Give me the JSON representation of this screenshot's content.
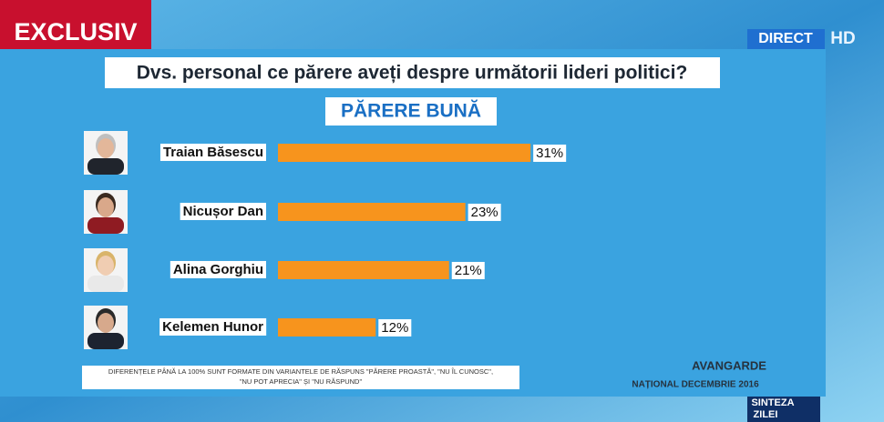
{
  "broadcast": {
    "badge": "EXCLUSIV",
    "live": "DIRECT",
    "hd": "HD",
    "show": [
      "SINTEZA",
      "ZILEI"
    ]
  },
  "chart_data": {
    "type": "bar",
    "orientation": "horizontal",
    "title": "Dvs. personal ce părere aveți despre următorii lideri politici?",
    "subtitle": "PĂRERE BUNĂ",
    "categories": [
      "Traian Băsescu",
      "Nicușor Dan",
      "Alina Gorghiu",
      "Kelemen Hunor"
    ],
    "values": [
      31,
      23,
      21,
      12
    ],
    "value_labels": [
      "31%",
      "23%",
      "21%",
      "12%"
    ],
    "color": "#f7941d",
    "note": [
      "DIFERENȚELE PÂNĂ LA 100% SUNT FORMATE DIN VARIANTELE DE RĂSPUNS \"PĂRERE PROASTĂ\", \"NU ÎL CUNOSC\",",
      "\"NU POT APRECIA\" ȘI \"NU RĂSPUND\""
    ],
    "source": "AVANGARDE",
    "source_date": "NAȚIONAL DECEMBRIE 2016"
  }
}
